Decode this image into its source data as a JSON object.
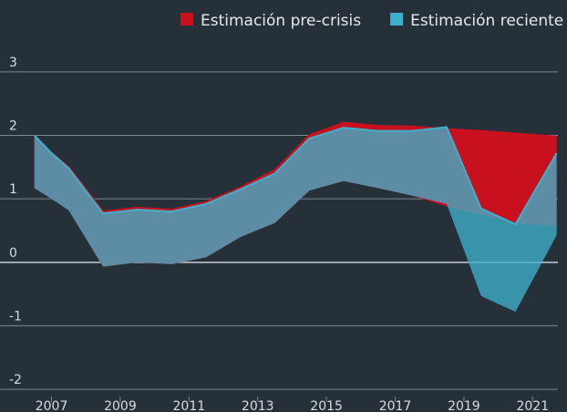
{
  "chart_data": {
    "type": "band",
    "x": [
      2006.5,
      2007,
      2007.5,
      2008.5,
      2009.5,
      2010.5,
      2011.5,
      2012.5,
      2013.5,
      2014.5,
      2015.5,
      2016.5,
      2017.5,
      2018.5,
      2019.5,
      2020.5,
      2021.7
    ],
    "series": [
      {
        "name": "Estimación pre-crisis",
        "color": "#c8101e",
        "upper": [
          2.0,
          1.72,
          1.5,
          0.8,
          0.86,
          0.83,
          0.95,
          1.18,
          1.45,
          2.0,
          2.2,
          2.15,
          2.14,
          2.1,
          2.07,
          2.03,
          1.98
        ],
        "lower": [
          1.17,
          1.0,
          0.82,
          -0.07,
          0.0,
          -0.03,
          0.08,
          0.4,
          0.62,
          1.13,
          1.28,
          1.17,
          1.05,
          0.88,
          0.75,
          0.62,
          0.57
        ]
      },
      {
        "name": "Estimación reciente",
        "color": "#3fb0cc",
        "upper": [
          2.0,
          1.72,
          1.48,
          0.77,
          0.83,
          0.8,
          0.92,
          1.15,
          1.4,
          1.95,
          2.12,
          2.07,
          2.07,
          2.13,
          0.85,
          0.6,
          1.72
        ],
        "lower": [
          1.17,
          1.0,
          0.82,
          -0.07,
          0.0,
          -0.03,
          0.08,
          0.4,
          0.62,
          1.13,
          1.28,
          1.17,
          1.05,
          0.92,
          -0.53,
          -0.78,
          0.43
        ]
      }
    ],
    "xlim": [
      2005.5,
      2022
    ],
    "xticks": [
      2007,
      2009,
      2011,
      2013,
      2015,
      2017,
      2019,
      2021
    ],
    "ylim": [
      -2.2,
      3.3
    ],
    "yticks": [
      3,
      2,
      1,
      0,
      -1,
      -2
    ],
    "grid": true,
    "legend": "top-right"
  }
}
